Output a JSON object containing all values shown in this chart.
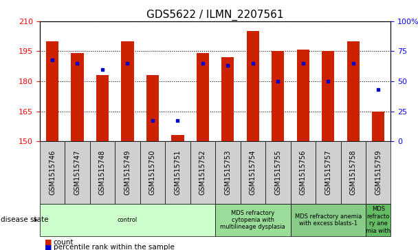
{
  "title": "GDS5622 / ILMN_2207561",
  "samples": [
    "GSM1515746",
    "GSM1515747",
    "GSM1515748",
    "GSM1515749",
    "GSM1515750",
    "GSM1515751",
    "GSM1515752",
    "GSM1515753",
    "GSM1515754",
    "GSM1515755",
    "GSM1515756",
    "GSM1515757",
    "GSM1515758",
    "GSM1515759"
  ],
  "counts": [
    200,
    194,
    183,
    200,
    183,
    153,
    194,
    192,
    205,
    195,
    196,
    195,
    200,
    165
  ],
  "percentile_ranks": [
    68,
    65,
    60,
    65,
    17,
    17,
    65,
    63,
    65,
    50,
    65,
    50,
    65,
    43
  ],
  "ylim_left": [
    150,
    210
  ],
  "ylim_right": [
    0,
    100
  ],
  "yticks_left": [
    150,
    165,
    180,
    195,
    210
  ],
  "yticks_right": [
    0,
    25,
    50,
    75,
    100
  ],
  "bar_color": "#cc2200",
  "dot_color": "#0000cc",
  "disease_groups": [
    {
      "label": "control",
      "start": 0,
      "end": 7,
      "color": "#ccffcc"
    },
    {
      "label": "MDS refractory\ncytopenia with\nmultilineage dysplasia",
      "start": 7,
      "end": 10,
      "color": "#99dd99"
    },
    {
      "label": "MDS refractory anemia\nwith excess blasts-1",
      "start": 10,
      "end": 13,
      "color": "#88cc88"
    },
    {
      "label": "MDS\nrefracto\nry ane\nmia with",
      "start": 13,
      "end": 14,
      "color": "#66bb66"
    }
  ],
  "disease_state_label": "disease state",
  "legend_count_label": "count",
  "legend_percentile_label": "percentile rank within the sample",
  "title_fontsize": 11,
  "bar_width": 0.5,
  "sample_bg_color": "#d0d0d0",
  "tick_fontsize": 7
}
